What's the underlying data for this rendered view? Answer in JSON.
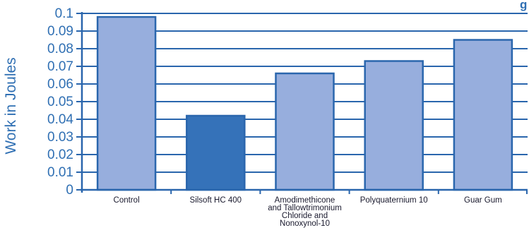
{
  "chart_data": {
    "type": "bar",
    "title_partial": [
      "g"
    ],
    "ylabel": "Work in Joules",
    "xlabel": "",
    "ylim": [
      0,
      0.1
    ],
    "yticks": [
      "0",
      "0.01",
      "0.02",
      "0.03",
      "0.04",
      "0.05",
      "0.06",
      "0.07",
      "0.08",
      "0.09",
      "0.1"
    ],
    "yticks_values": [
      0,
      0.01,
      0.02,
      0.03,
      0.04,
      0.05,
      0.06,
      0.07,
      0.08,
      0.09,
      0.1
    ],
    "categories": [
      [
        "Control"
      ],
      [
        "Silsoft HC 400"
      ],
      [
        "Amodimethicone",
        "and Tallowtrimonium",
        "Chloride and",
        "Nonoxynol-10"
      ],
      [
        "Polyquaternium 10"
      ],
      [
        "Guar Gum"
      ]
    ],
    "values": [
      0.098,
      0.042,
      0.066,
      0.073,
      0.085
    ],
    "bar_colors": [
      "#97aedd",
      "#3572b9",
      "#97aedd",
      "#97aedd",
      "#97aedd"
    ],
    "bar_stroke": "#2a66ad",
    "grid": true,
    "grid_color": "#2a66ad"
  }
}
